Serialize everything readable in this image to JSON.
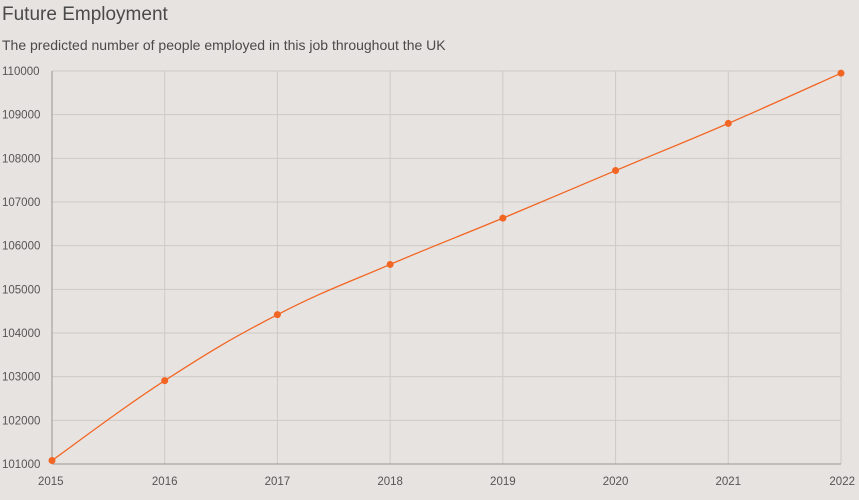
{
  "header": {
    "title": "Future Employment",
    "subtitle": "The predicted number of people employed in this job throughout the UK"
  },
  "colors": {
    "background": "#e7e3e0",
    "grid": "#cfcac6",
    "series": "#f26522",
    "axis_text": "#555555"
  },
  "chart_data": {
    "type": "line",
    "title": "Future Employment",
    "subtitle": "The predicted number of people employed in this job throughout the UK",
    "xlabel": "",
    "ylabel": "",
    "x": [
      2015,
      2016,
      2017,
      2018,
      2019,
      2020,
      2021,
      2022
    ],
    "series": [
      {
        "values": [
          101080,
          102910,
          104420,
          105570,
          106630,
          107720,
          108800,
          109950
        ]
      }
    ],
    "ylim": [
      101000,
      110000
    ],
    "yticks": [
      101000,
      102000,
      103000,
      104000,
      105000,
      106000,
      107000,
      108000,
      109000,
      110000
    ],
    "grid": true,
    "legend": "none"
  }
}
